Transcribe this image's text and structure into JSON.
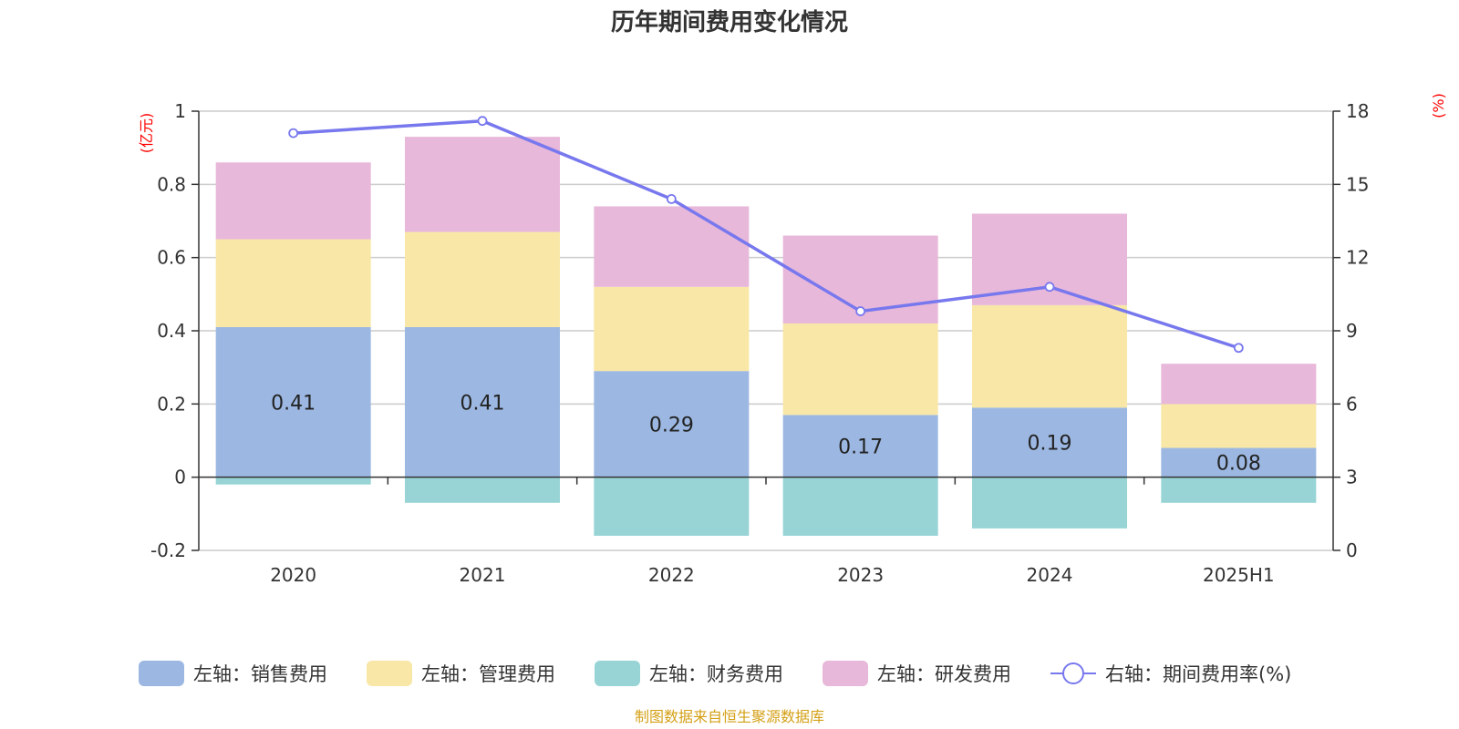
{
  "chart_data": {
    "type": "bar",
    "stacked": true,
    "title": "历年期间费用变化情况",
    "categories": [
      "2020",
      "2021",
      "2022",
      "2023",
      "2024",
      "2025H1"
    ],
    "left_axis": {
      "unit": "(亿元)",
      "ylim": [
        -0.2,
        1
      ],
      "ticks": [
        "-0.2",
        "0",
        "0.2",
        "0.4",
        "0.6",
        "0.8",
        "1"
      ]
    },
    "right_axis": {
      "unit": "(%)",
      "ylim": [
        0,
        18
      ],
      "ticks": [
        "0",
        "3",
        "6",
        "9",
        "12",
        "15",
        "18"
      ]
    },
    "series": [
      {
        "name": "左轴：销售费用",
        "color": "#9cb8e2",
        "values": [
          0.41,
          0.41,
          0.29,
          0.17,
          0.19,
          0.08
        ],
        "labels": [
          "0.41",
          "0.41",
          "0.29",
          "0.17",
          "0.19",
          "0.08"
        ]
      },
      {
        "name": "左轴：管理费用",
        "color": "#f8e7a6",
        "values": [
          0.24,
          0.26,
          0.23,
          0.25,
          0.28,
          0.12
        ]
      },
      {
        "name": "左轴：财务费用",
        "color": "#98d4d5",
        "values": [
          -0.02,
          -0.07,
          -0.16,
          -0.16,
          -0.14,
          -0.07
        ]
      },
      {
        "name": "左轴：研发费用",
        "color": "#e8b8da",
        "values": [
          0.21,
          0.26,
          0.22,
          0.24,
          0.25,
          0.11
        ]
      }
    ],
    "line_series": {
      "name": "右轴：期间费用率(%)",
      "color": "#7878ee",
      "values": [
        17.1,
        17.6,
        14.4,
        9.8,
        10.8,
        8.3
      ]
    },
    "legend_position": "bottom",
    "grid": true
  },
  "source_text": "制图数据来自恒生聚源数据库",
  "colors": {
    "unit_label": "#ff0000",
    "source": "#d4a017",
    "grid": "#cccccc",
    "axis": "#333333"
  }
}
